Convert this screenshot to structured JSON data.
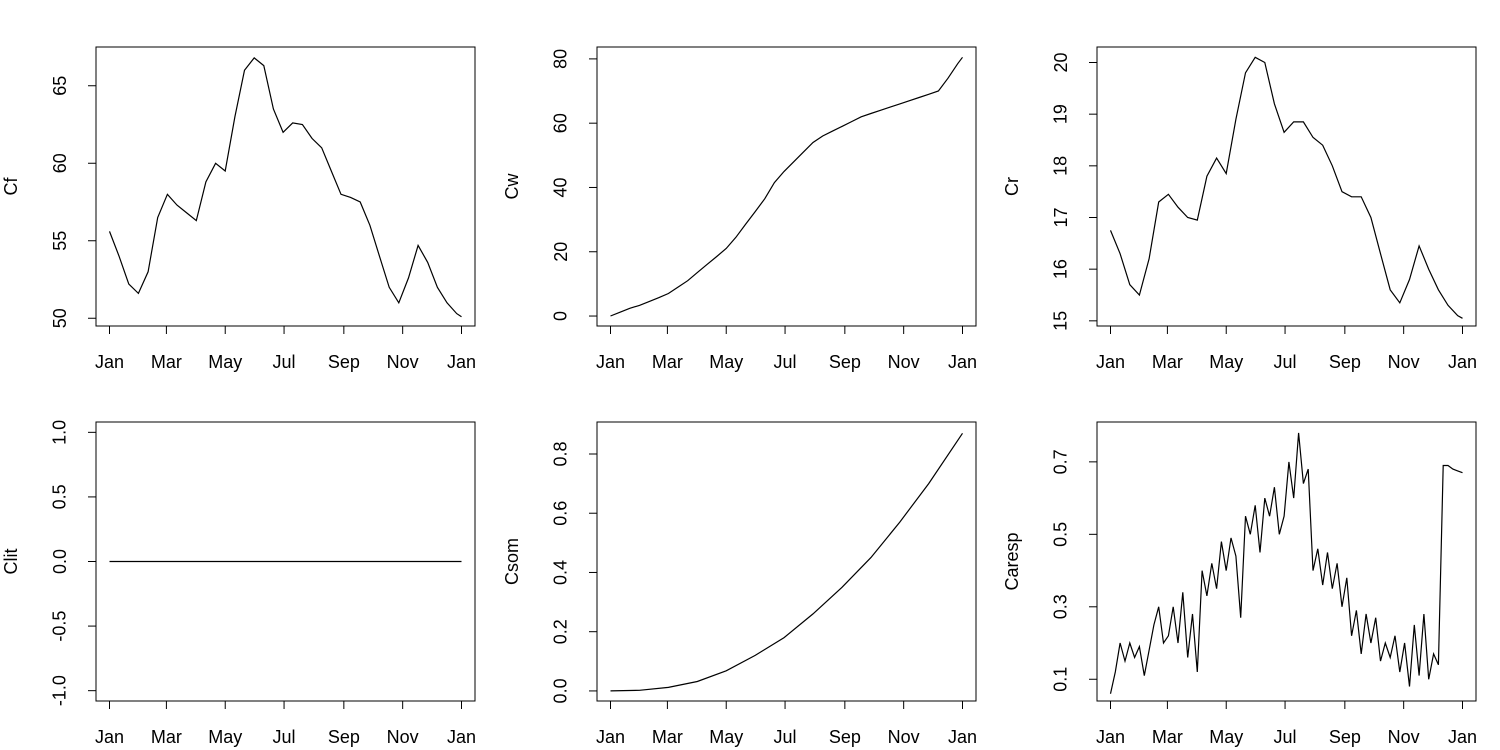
{
  "chart_data": [
    {
      "type": "line",
      "ylabel": "Cf",
      "color": "#000000",
      "x": [
        1,
        11,
        21,
        31,
        41,
        51,
        61,
        71,
        81,
        91,
        101,
        111,
        121,
        131,
        141,
        151,
        161,
        171,
        181,
        191,
        201,
        211,
        221,
        231,
        241,
        251,
        261,
        271,
        281,
        291,
        301,
        311,
        321,
        331,
        341,
        351,
        361,
        366
      ],
      "values": [
        55.6,
        54.0,
        52.2,
        51.6,
        53.0,
        56.5,
        58.0,
        57.3,
        56.8,
        56.3,
        58.8,
        60.0,
        59.5,
        63.0,
        66.0,
        66.8,
        66.3,
        63.5,
        62.0,
        62.6,
        62.5,
        61.6,
        61.0,
        59.5,
        58.0,
        57.8,
        57.5,
        56.0,
        54.0,
        52.0,
        51.0,
        52.6,
        54.7,
        53.6,
        52.0,
        51.0,
        50.3,
        50.1
      ],
      "xlim": [
        -13,
        380
      ],
      "ylim": [
        49.5,
        67.5
      ],
      "yticks": [
        50,
        55,
        60,
        65
      ],
      "xticks": [
        {
          "value": 1,
          "label": "Jan"
        },
        {
          "value": 60,
          "label": "Mar"
        },
        {
          "value": 121,
          "label": "May"
        },
        {
          "value": 182,
          "label": "Jul"
        },
        {
          "value": 244,
          "label": "Sep"
        },
        {
          "value": 305,
          "label": "Nov"
        },
        {
          "value": 366,
          "label": "Jan"
        }
      ]
    },
    {
      "type": "line",
      "ylabel": "Cw",
      "color": "#000000",
      "x": [
        1,
        11,
        21,
        31,
        41,
        51,
        61,
        71,
        81,
        91,
        101,
        111,
        121,
        131,
        141,
        151,
        161,
        171,
        181,
        191,
        201,
        211,
        221,
        231,
        241,
        251,
        261,
        271,
        281,
        291,
        301,
        311,
        321,
        331,
        341,
        351,
        361,
        366
      ],
      "values": [
        0,
        1.2,
        2.4,
        3.3,
        4.5,
        5.7,
        7.0,
        9.0,
        11.0,
        13.5,
        16.0,
        18.5,
        21.0,
        24.5,
        28.5,
        32.5,
        36.5,
        41.5,
        45.0,
        48.0,
        51.0,
        54.0,
        56.0,
        57.5,
        59.0,
        60.5,
        62.0,
        63.0,
        64.0,
        65.0,
        66.0,
        67.0,
        68.0,
        69.0,
        70.0,
        74.0,
        78.5,
        80.5
      ],
      "xlim": [
        -13,
        380
      ],
      "ylim": [
        -3.1,
        83.7
      ],
      "yticks": [
        0,
        20,
        40,
        60,
        80
      ],
      "xticks": [
        {
          "value": 1,
          "label": "Jan"
        },
        {
          "value": 60,
          "label": "Mar"
        },
        {
          "value": 121,
          "label": "May"
        },
        {
          "value": 182,
          "label": "Jul"
        },
        {
          "value": 244,
          "label": "Sep"
        },
        {
          "value": 305,
          "label": "Nov"
        },
        {
          "value": 366,
          "label": "Jan"
        }
      ]
    },
    {
      "type": "line",
      "ylabel": "Cr",
      "color": "#000000",
      "x": [
        1,
        11,
        21,
        31,
        41,
        51,
        61,
        71,
        81,
        91,
        101,
        111,
        121,
        131,
        141,
        151,
        161,
        171,
        181,
        191,
        201,
        211,
        221,
        231,
        241,
        251,
        261,
        271,
        281,
        291,
        301,
        311,
        321,
        331,
        341,
        351,
        361,
        366
      ],
      "values": [
        16.75,
        16.3,
        15.7,
        15.5,
        16.2,
        17.3,
        17.45,
        17.2,
        17.0,
        16.95,
        17.8,
        18.15,
        17.85,
        18.9,
        19.8,
        20.1,
        20.0,
        19.2,
        18.65,
        18.85,
        18.85,
        18.55,
        18.4,
        18.0,
        17.5,
        17.4,
        17.4,
        17.0,
        16.3,
        15.6,
        15.35,
        15.8,
        16.45,
        16.0,
        15.6,
        15.3,
        15.1,
        15.05
      ],
      "xlim": [
        -13,
        380
      ],
      "ylim": [
        14.9,
        20.3
      ],
      "yticks": [
        15,
        16,
        17,
        18,
        19,
        20
      ],
      "xticks": [
        {
          "value": 1,
          "label": "Jan"
        },
        {
          "value": 60,
          "label": "Mar"
        },
        {
          "value": 121,
          "label": "May"
        },
        {
          "value": 182,
          "label": "Jul"
        },
        {
          "value": 244,
          "label": "Sep"
        },
        {
          "value": 305,
          "label": "Nov"
        },
        {
          "value": 366,
          "label": "Jan"
        }
      ]
    },
    {
      "type": "line",
      "ylabel": "Clit",
      "color": "#000000",
      "x": [
        1,
        366
      ],
      "values": [
        0,
        0
      ],
      "xlim": [
        -13,
        380
      ],
      "ylim": [
        -1.08,
        1.08
      ],
      "yticks": [
        {
          "value": -1,
          "label": "-1.0"
        },
        {
          "value": -0.5,
          "label": "-0.5"
        },
        {
          "value": 0,
          "label": "0.0"
        },
        {
          "value": 0.5,
          "label": "0.5"
        },
        {
          "value": 1,
          "label": "1.0"
        }
      ],
      "xticks": [
        {
          "value": 1,
          "label": "Jan"
        },
        {
          "value": 60,
          "label": "Mar"
        },
        {
          "value": 121,
          "label": "May"
        },
        {
          "value": 182,
          "label": "Jul"
        },
        {
          "value": 244,
          "label": "Sep"
        },
        {
          "value": 305,
          "label": "Nov"
        },
        {
          "value": 366,
          "label": "Jan"
        }
      ]
    },
    {
      "type": "line",
      "ylabel": "Csom",
      "color": "#000000",
      "x": [
        1,
        31,
        61,
        91,
        121,
        151,
        181,
        211,
        241,
        271,
        301,
        331,
        366
      ],
      "values": [
        0,
        0.002,
        0.012,
        0.032,
        0.068,
        0.12,
        0.18,
        0.26,
        0.35,
        0.45,
        0.57,
        0.7,
        0.87
      ],
      "xlim": [
        -13,
        380
      ],
      "ylim": [
        -0.034,
        0.908
      ],
      "yticks": [
        {
          "value": 0,
          "label": "0.0"
        },
        0.2,
        0.4,
        0.6,
        0.8
      ],
      "xticks": [
        {
          "value": 1,
          "label": "Jan"
        },
        {
          "value": 60,
          "label": "Mar"
        },
        {
          "value": 121,
          "label": "May"
        },
        {
          "value": 182,
          "label": "Jul"
        },
        {
          "value": 244,
          "label": "Sep"
        },
        {
          "value": 305,
          "label": "Nov"
        },
        {
          "value": 366,
          "label": "Jan"
        }
      ]
    },
    {
      "type": "line",
      "ylabel": "Caresp",
      "color": "#000000",
      "x": [
        1,
        6,
        11,
        16,
        21,
        26,
        31,
        36,
        41,
        46,
        51,
        56,
        61,
        66,
        71,
        76,
        81,
        86,
        91,
        96,
        101,
        106,
        111,
        116,
        121,
        126,
        131,
        136,
        141,
        146,
        151,
        156,
        161,
        166,
        171,
        176,
        181,
        186,
        191,
        196,
        201,
        206,
        211,
        216,
        221,
        226,
        231,
        236,
        241,
        246,
        251,
        256,
        261,
        266,
        271,
        276,
        281,
        286,
        291,
        296,
        301,
        306,
        311,
        316,
        321,
        326,
        331,
        336,
        341,
        346,
        351,
        356,
        361,
        366
      ],
      "values": [
        0.06,
        0.12,
        0.2,
        0.15,
        0.2,
        0.16,
        0.19,
        0.11,
        0.18,
        0.25,
        0.3,
        0.2,
        0.22,
        0.3,
        0.2,
        0.34,
        0.16,
        0.28,
        0.12,
        0.4,
        0.33,
        0.42,
        0.35,
        0.48,
        0.4,
        0.49,
        0.44,
        0.27,
        0.55,
        0.5,
        0.58,
        0.45,
        0.6,
        0.55,
        0.63,
        0.5,
        0.55,
        0.7,
        0.6,
        0.78,
        0.64,
        0.68,
        0.4,
        0.46,
        0.36,
        0.45,
        0.35,
        0.42,
        0.3,
        0.38,
        0.22,
        0.29,
        0.17,
        0.28,
        0.2,
        0.27,
        0.15,
        0.2,
        0.16,
        0.22,
        0.12,
        0.2,
        0.08,
        0.25,
        0.11,
        0.28,
        0.1,
        0.17,
        0.14,
        0.69,
        0.69,
        0.68,
        0.675,
        0.67
      ],
      "xlim": [
        -13,
        380
      ],
      "ylim": [
        0.04,
        0.81
      ],
      "yticks": [
        0.1,
        0.3,
        0.5,
        0.7
      ],
      "xticks": [
        {
          "value": 1,
          "label": "Jan"
        },
        {
          "value": 60,
          "label": "Mar"
        },
        {
          "value": 121,
          "label": "May"
        },
        {
          "value": 182,
          "label": "Jul"
        },
        {
          "value": 244,
          "label": "Sep"
        },
        {
          "value": 305,
          "label": "Nov"
        },
        {
          "value": 366,
          "label": "Jan"
        }
      ]
    }
  ]
}
